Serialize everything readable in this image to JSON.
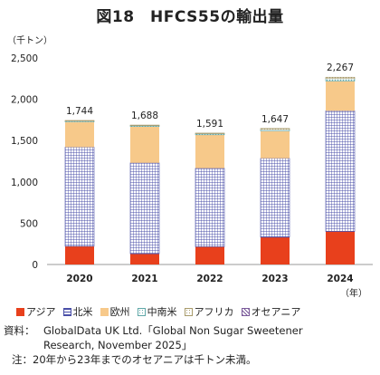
{
  "title": "図18　HFCS55の輸出量",
  "unit_label": "（千トン）",
  "year_unit": "（年）",
  "colors": {
    "asia": "#e8401c",
    "north_america": "#4a4fa8",
    "europe": "#f7c98a",
    "central_south_america": "#5fa8a8",
    "africa": "#a89a6a",
    "oceania": "#7a5a9a"
  },
  "legend": [
    {
      "label": "アジア",
      "color_key": "asia",
      "style": "solid"
    },
    {
      "label": "北米",
      "color_key": "north_america",
      "style": "grid"
    },
    {
      "label": "欧州",
      "color_key": "europe",
      "style": "solid"
    },
    {
      "label": "中南米",
      "color_key": "central_south_america",
      "style": "dots"
    },
    {
      "label": "アフリカ",
      "color_key": "africa",
      "style": "dots"
    },
    {
      "label": "オセアニア",
      "color_key": "oceania",
      "style": "cross"
    }
  ],
  "chart_data": {
    "type": "bar",
    "stacked": true,
    "categories": [
      "2020",
      "2021",
      "2022",
      "2023",
      "2024"
    ],
    "series": [
      {
        "name": "アジア",
        "values": [
          220,
          130,
          215,
          330,
          400
        ]
      },
      {
        "name": "北米",
        "values": [
          1200,
          1100,
          950,
          955,
          1460
        ]
      },
      {
        "name": "欧州",
        "values": [
          305,
          440,
          405,
          330,
          360
        ]
      },
      {
        "name": "中南米",
        "values": [
          12,
          12,
          14,
          20,
          30
        ]
      },
      {
        "name": "アフリカ",
        "values": [
          7,
          6,
          7,
          12,
          17
        ]
      },
      {
        "name": "オセアニア",
        "values": [
          0,
          0,
          0,
          0,
          0
        ]
      }
    ],
    "totals": [
      1744,
      1688,
      1591,
      1647,
      2267
    ],
    "total_labels": [
      "1,744",
      "1,688",
      "1,591",
      "1,647",
      "2,267"
    ],
    "yticks": [
      "0",
      "500",
      "1,000",
      "1,500",
      "2,000",
      "2,500"
    ],
    "ylim": [
      0,
      2500
    ],
    "grid": false
  },
  "notes": {
    "source_label": "資料：",
    "source_line1": "GlobalData UK Ltd.「Global Non Sugar Sweetener",
    "source_line2": "Research, November 2025」",
    "note_label": "注：",
    "note_text": "20年から23年までのオセアニアは千トン未満。"
  }
}
